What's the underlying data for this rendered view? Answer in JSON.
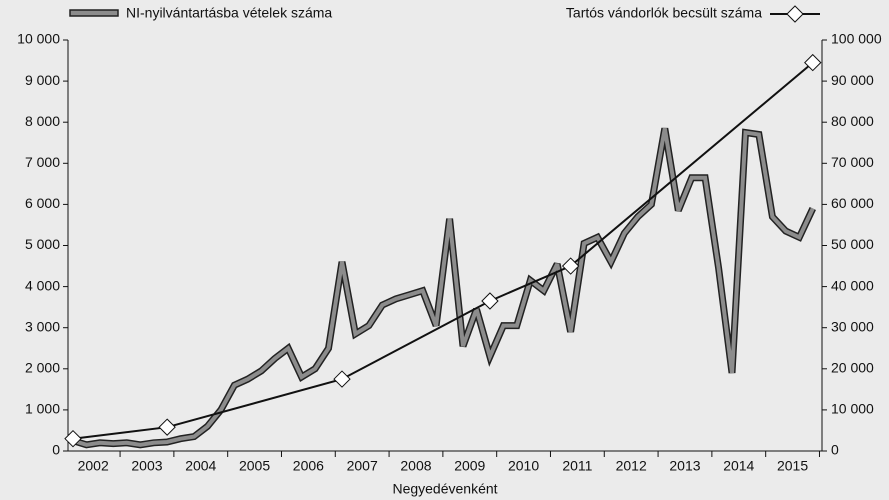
{
  "chart_data": {
    "type": "line",
    "x_label": "Negyedévenként",
    "categories": [
      "2002",
      null,
      null,
      null,
      "2003",
      null,
      null,
      null,
      "2004",
      null,
      null,
      null,
      "2005",
      null,
      null,
      null,
      "2006",
      null,
      null,
      null,
      "2007",
      null,
      null,
      null,
      "2008",
      null,
      null,
      null,
      "2009",
      null,
      null,
      null,
      "2010",
      null,
      null,
      null,
      "2011",
      null,
      null,
      null,
      "2012",
      null,
      null,
      null,
      "2013",
      null,
      null,
      null,
      "2014",
      null,
      null,
      null,
      "2015",
      null,
      null,
      null
    ],
    "series": [
      {
        "name": "NI-nyilvántartásba vételek száma",
        "color": "#8c8c8c",
        "axis": "y",
        "values": [
          250,
          150,
          200,
          180,
          200,
          150,
          200,
          220,
          300,
          350,
          600,
          1000,
          1600,
          1750,
          1950,
          2250,
          2500,
          1800,
          2000,
          2500,
          4600,
          2850,
          3050,
          3550,
          3700,
          3800,
          3900,
          3050,
          5650,
          2550,
          3450,
          2300,
          3050,
          3050,
          4150,
          3900,
          4550,
          2900,
          5050,
          5200,
          4600,
          5300,
          5700,
          6000,
          7850,
          5850,
          6650,
          6650,
          4450,
          1900,
          7750,
          7700,
          5700,
          5350,
          5200,
          5900
        ]
      },
      {
        "name": "Tartós vándorlók becsült száma",
        "color": "#111111",
        "axis": "y2",
        "markers": "diamond",
        "connect_gaps": true,
        "values": [
          3000,
          null,
          null,
          null,
          null,
          null,
          null,
          5800,
          null,
          null,
          null,
          null,
          null,
          null,
          null,
          null,
          null,
          null,
          null,
          null,
          17500,
          null,
          null,
          null,
          null,
          null,
          null,
          null,
          null,
          null,
          null,
          36500,
          null,
          null,
          null,
          null,
          null,
          45000,
          null,
          null,
          null,
          null,
          null,
          null,
          null,
          null,
          null,
          null,
          null,
          null,
          null,
          null,
          null,
          null,
          null,
          94500
        ]
      }
    ],
    "ylim": [
      0,
      10000
    ],
    "yticks": [
      0,
      {
        "value": 1000,
        "label": "1 000"
      },
      {
        "value": 2000,
        "label": "2 000"
      },
      {
        "value": 3000,
        "label": "3 000"
      },
      {
        "value": 4000,
        "label": "4 000"
      },
      {
        "value": 5000,
        "label": "5 000"
      },
      {
        "value": 6000,
        "label": "6 000"
      },
      {
        "value": 7000,
        "label": "7 000"
      },
      {
        "value": 8000,
        "label": "8 000"
      },
      {
        "value": 9000,
        "label": "9 000"
      },
      {
        "value": 10000,
        "label": "10 000"
      }
    ],
    "y2lim": [
      0,
      100000
    ],
    "y2ticks": [
      0,
      {
        "value": 10000,
        "label": "10 000"
      },
      {
        "value": 20000,
        "label": "20 000"
      },
      {
        "value": 30000,
        "label": "30 000"
      },
      {
        "value": 40000,
        "label": "40 000"
      },
      {
        "value": 50000,
        "label": "50 000"
      },
      {
        "value": 60000,
        "label": "60 000"
      },
      {
        "value": 70000,
        "label": "70 000"
      },
      {
        "value": 80000,
        "label": "80 000"
      },
      {
        "value": 90000,
        "label": "90 000"
      },
      {
        "value": 100000,
        "label": "100 000"
      }
    ],
    "legend": "top",
    "grid": false
  }
}
